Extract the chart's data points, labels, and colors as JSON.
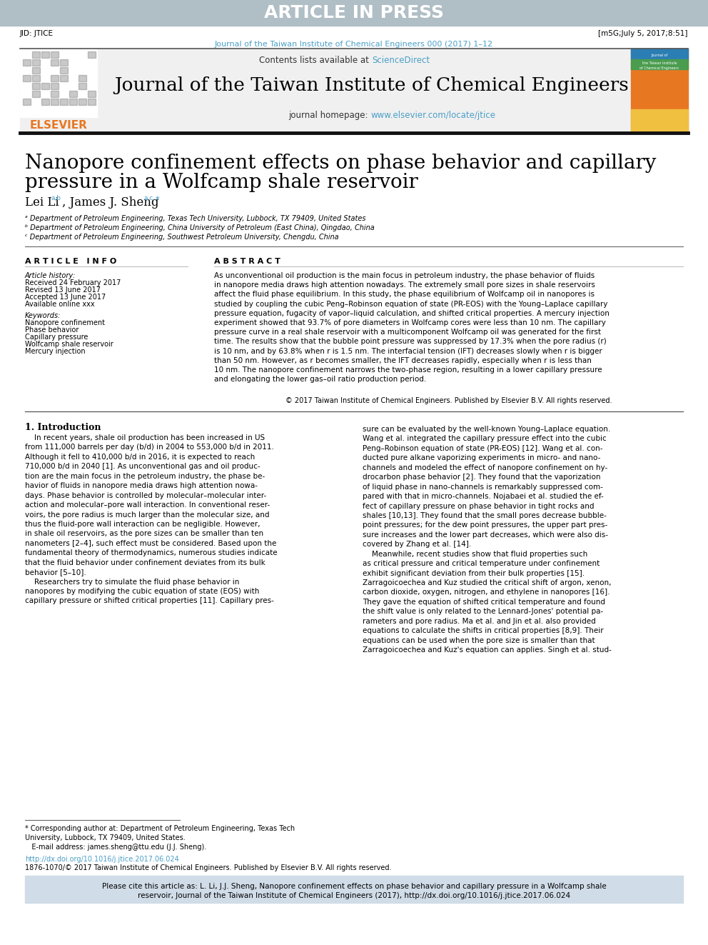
{
  "figsize": [
    9.92,
    13.23
  ],
  "dpi": 100,
  "bg_color": "#ffffff",
  "header_bar_color": "#b0bec5",
  "header_text": "ARTICLE IN PRESS",
  "header_text_color": "#ffffff",
  "header_text_size": 18,
  "jid_text": "JID: JTICE",
  "jid_right_text": "[m5G;July 5, 2017;8:51]",
  "jid_fontsize": 7.5,
  "journal_ref_text": "Journal of the Taiwan Institute of Chemical Engineers 000 (2017) 1–12",
  "journal_ref_color": "#4a9fc7",
  "journal_ref_fontsize": 8,
  "header_box_color": "#f0f0f0",
  "contents_text": "Contents lists available at ",
  "sciencedirect_text": "ScienceDirect",
  "sciencedirect_color": "#4a9fc7",
  "contents_fontsize": 8.5,
  "journal_title": "Journal of the Taiwan Institute of Chemical Engineers",
  "journal_title_fontsize": 19,
  "homepage_label": "journal homepage: ",
  "homepage_url": "www.elsevier.com/locate/jtice",
  "homepage_color": "#4a9fc7",
  "homepage_fontsize": 8.5,
  "elsevier_text": "ELSEVIER",
  "elsevier_color": "#e87722",
  "elsevier_fontsize": 11,
  "article_title_line1": "Nanopore confinement effects on phase behavior and capillary",
  "article_title_line2": "pressure in a Wolfcamp shale reservoir",
  "article_title_fontsize": 20,
  "authors_fontsize": 12,
  "affil_a": "ᵃ Department of Petroleum Engineering, Texas Tech University, Lubbock, TX 79409, United States",
  "affil_b": "ᵇ Department of Petroleum Engineering, China University of Petroleum (East China), Qingdao, China",
  "affil_c": "ᶜ Department of Petroleum Engineering, Southwest Petroleum University, Chengdu, China",
  "affil_fontsize": 7,
  "article_info_title": "A R T I C L E   I N F O",
  "abstract_title": "A B S T R A C T",
  "section_title_fontsize": 8,
  "article_history_title": "Article history:",
  "received": "Received 24 February 2017",
  "revised": "Revised 13 June 2017",
  "accepted": "Accepted 13 June 2017",
  "available": "Available online xxx",
  "history_fontsize": 7,
  "keywords_title": "Keywords:",
  "keyword1": "Nanopore confinement",
  "keyword2": "Phase behavior",
  "keyword3": "Capillary pressure",
  "keyword4": "Wolfcamp shale reservoir",
  "keyword5": "Mercury injection",
  "keywords_fontsize": 7,
  "abstract_text": "As unconventional oil production is the main focus in petroleum industry, the phase behavior of fluids\nin nanopore media draws high attention nowadays. The extremely small pore sizes in shale reservoirs\naffect the fluid phase equilibrium. In this study, the phase equilibrium of Wolfcamp oil in nanopores is\nstudied by coupling the cubic Peng–Robinson equation of state (PR-EOS) with the Young–Laplace capillary\npressure equation, fugacity of vapor–liquid calculation, and shifted critical properties. A mercury injection\nexperiment showed that 93.7% of pore diameters in Wolfcamp cores were less than 10 nm. The capillary\npressure curve in a real shale reservoir with a multicomponent Wolfcamp oil was generated for the first\ntime. The results show that the bubble point pressure was suppressed by 17.3% when the pore radius (r)\nis 10 nm, and by 63.8% when r is 1.5 nm. The interfacial tension (IFT) decreases slowly when r is bigger\nthan 50 nm. However, as r becomes smaller, the IFT decreases rapidly, especially when r is less than\n10 nm. The nanopore confinement narrows the two-phase region, resulting in a lower capillary pressure\nand elongating the lower gas–oil ratio production period.",
  "abstract_fontsize": 7.5,
  "copyright_text": "© 2017 Taiwan Institute of Chemical Engineers. Published by Elsevier B.V. All rights reserved.",
  "copyright_fontsize": 7,
  "intro_title": "1. Introduction",
  "intro_title_fontsize": 9,
  "intro_col1": "    In recent years, shale oil production has been increased in US\nfrom 111,000 barrels per day (b/d) in 2004 to 553,000 b/d in 2011.\nAlthough it fell to 410,000 b/d in 2016, it is expected to reach\n710,000 b/d in 2040 [1]. As unconventional gas and oil produc-\ntion are the main focus in the petroleum industry, the phase be-\nhavior of fluids in nanopore media draws high attention nowa-\ndays. Phase behavior is controlled by molecular–molecular inter-\naction and molecular–pore wall interaction. In conventional reser-\nvoirs, the pore radius is much larger than the molecular size, and\nthus the fluid-pore wall interaction can be negligible. However,\nin shale oil reservoirs, as the pore sizes can be smaller than ten\nnanometers [2–4], such effect must be considered. Based upon the\nfundamental theory of thermodynamics, numerous studies indicate\nthat the fluid behavior under confinement deviates from its bulk\nbehavior [5–10].\n    Researchers try to simulate the fluid phase behavior in\nnanopores by modifying the cubic equation of state (EOS) with\ncapillary pressure or shifted critical properties [11]. Capillary pres-",
  "intro_col2": "sure can be evaluated by the well-known Young–Laplace equation.\nWang et al. integrated the capillary pressure effect into the cubic\nPeng–Robinson equation of state (PR-EOS) [12]. Wang et al. con-\nducted pure alkane vaporizing experiments in micro- and nano-\nchannels and modeled the effect of nanopore confinement on hy-\ndrocarbon phase behavior [2]. They found that the vaporization\nof liquid phase in nano-channels is remarkably suppressed com-\npared with that in micro-channels. Nojabaei et al. studied the ef-\nfect of capillary pressure on phase behavior in tight rocks and\nshales [10,13]. They found that the small pores decrease bubble-\npoint pressures; for the dew point pressures, the upper part pres-\nsure increases and the lower part decreases, which were also dis-\ncovered by Zhang et al. [14].\n    Meanwhile, recent studies show that fluid properties such\nas critical pressure and critical temperature under confinement\nexhibit significant deviation from their bulk properties [15].\nZarragoicoechea and Kuz studied the critical shift of argon, xenon,\ncarbon dioxide, oxygen, nitrogen, and ethylene in nanopores [16].\nThey gave the equation of shifted critical temperature and found\nthe shift value is only related to the Lennard-Jones' potential pa-\nrameters and pore radius. Ma et al. and Jin et al. also provided\nequations to calculate the shifts in critical properties [8,9]. Their\nequations can be used when the pore size is smaller than that\nZarragoicoechea and Kuz's equation can applies. Singh et al. stud-",
  "intro_fontsize": 7.5,
  "footnote_star": "* Corresponding author at: Department of Petroleum Engineering, Texas Tech\nUniversity, Lubbock, TX 79409, United States.\n   E-mail address: james.sheng@ttu.edu (J.J. Sheng).",
  "footnote_fontsize": 7,
  "doi_text": "http://dx.doi.org/10.1016/j.jtice.2017.06.024",
  "doi_color": "#4a9fc7",
  "issn_text": "1876-1070/© 2017 Taiwan Institute of Chemical Engineers. Published by Elsevier B.V. All rights reserved.",
  "doi_fontsize": 7,
  "cite_box_color": "#d0dce8",
  "cite_line1": "Please cite this article as: L. Li, J.J. Sheng, Nanopore confinement effects on phase behavior and capillary pressure in a Wolfcamp shale",
  "cite_line2": "reservoir, Journal of the Taiwan Institute of Chemical Engineers (2017), http://dx.doi.org/10.1016/j.jtice.2017.06.024",
  "cite_doi_color": "#4a9fc7",
  "cite_fontsize": 7.5
}
